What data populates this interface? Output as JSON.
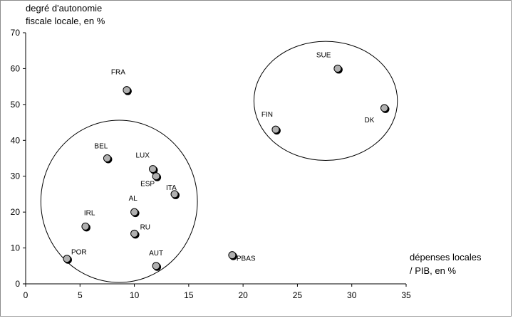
{
  "chart_data": {
    "type": "scatter",
    "title": "",
    "ylabel_lines": [
      "degré d'autonomie",
      "fiscale locale, en %"
    ],
    "xlabel_lines": [
      "dépenses locales",
      "/ PIB, en %"
    ],
    "xlim": [
      0,
      35
    ],
    "ylim": [
      0,
      70
    ],
    "xticks": [
      0,
      5,
      10,
      15,
      20,
      25,
      30,
      35
    ],
    "yticks": [
      0,
      10,
      20,
      30,
      40,
      50,
      60,
      70
    ],
    "grid": false,
    "legend": "none",
    "marker_color": "#b0b0b0",
    "points": [
      {
        "label": "SUE",
        "x": 28.7,
        "y": 60
      },
      {
        "label": "DK",
        "x": 33.0,
        "y": 49
      },
      {
        "label": "FIN",
        "x": 23.0,
        "y": 43
      },
      {
        "label": "FRA",
        "x": 9.3,
        "y": 54
      },
      {
        "label": "BEL",
        "x": 7.5,
        "y": 35
      },
      {
        "label": "LUX",
        "x": 11.7,
        "y": 32
      },
      {
        "label": "ESP",
        "x": 12.0,
        "y": 30
      },
      {
        "label": "ITA",
        "x": 13.7,
        "y": 25
      },
      {
        "label": "AL",
        "x": 10.0,
        "y": 20
      },
      {
        "label": "IRL",
        "x": 5.5,
        "y": 16
      },
      {
        "label": "RU",
        "x": 10.0,
        "y": 14
      },
      {
        "label": "AUT",
        "x": 12.0,
        "y": 5
      },
      {
        "label": "PBAS",
        "x": 19.0,
        "y": 8
      },
      {
        "label": "POR",
        "x": 3.8,
        "y": 7
      }
    ],
    "groups": [
      {
        "cx": 8.6,
        "cy": 23,
        "rx": 7.2,
        "ry": 22.6
      },
      {
        "cx": 27.6,
        "cy": 51,
        "rx": 6.6,
        "ry": 16.6
      }
    ]
  }
}
